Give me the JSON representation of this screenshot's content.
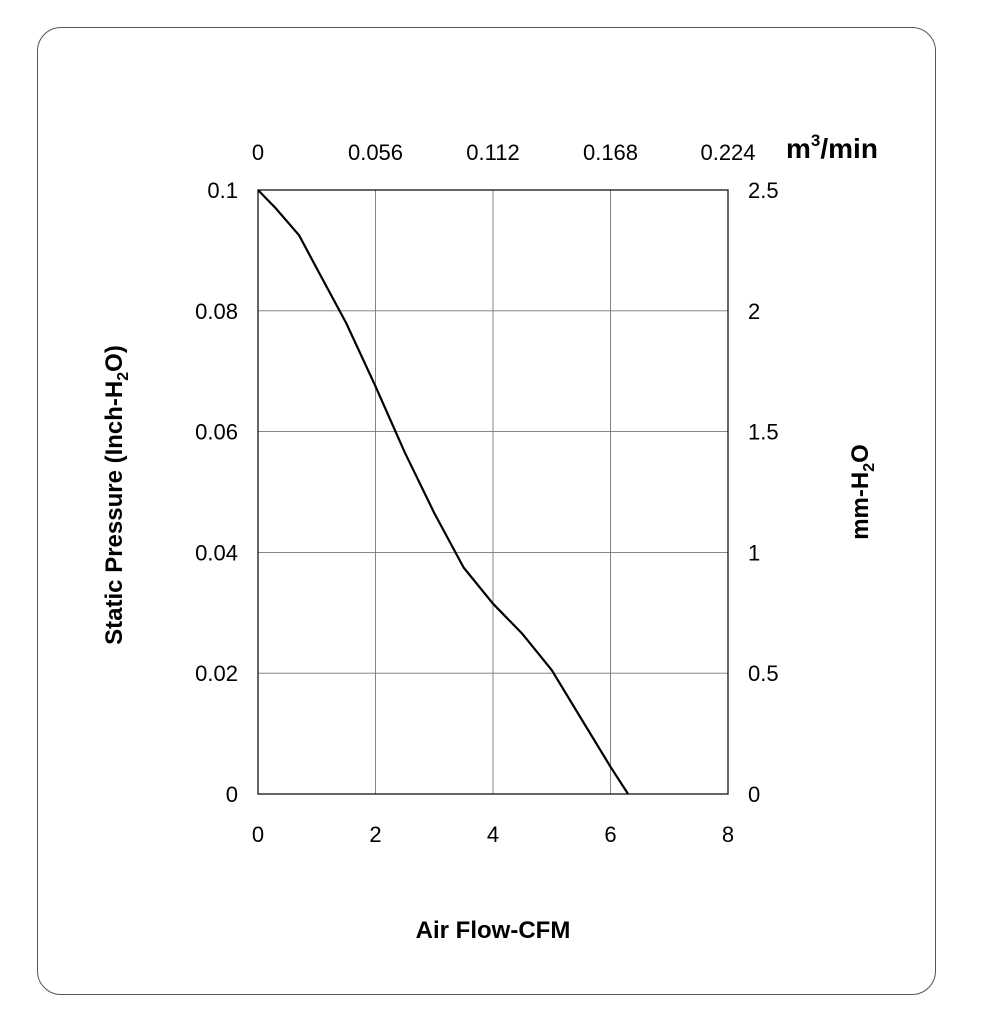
{
  "chart_data": {
    "type": "line",
    "xlabel": "Air Flow-CFM",
    "ylabel": {
      "text": "Static Pressure (Inch-H",
      "sub": "2",
      "tail": "O)"
    },
    "y2label": {
      "text": "mm-H",
      "sub": "2",
      "tail": "O"
    },
    "x2label": {
      "base": "m",
      "sup": "3",
      "tail": "/min"
    },
    "xlim": [
      0,
      8
    ],
    "ylim": [
      0,
      0.1
    ],
    "y2lim": [
      0,
      2.5
    ],
    "x2lim": [
      0,
      0.224
    ],
    "x_ticks": [
      "0",
      "2",
      "4",
      "6",
      "8"
    ],
    "y_ticks": [
      "0",
      "0.02",
      "0.04",
      "0.06",
      "0.08",
      "0.1"
    ],
    "y2_ticks": [
      "0",
      "0.5",
      "1",
      "1.5",
      "2",
      "2.5"
    ],
    "x2_ticks": [
      "0",
      "0.056",
      "0.112",
      "0.168",
      "0.224"
    ],
    "grid": true,
    "series": [
      {
        "x": [
          0,
          0.3,
          0.7,
          1.0,
          1.5,
          2.0,
          2.5,
          3.0,
          3.5,
          4.0,
          4.5,
          5.0,
          5.5,
          6.0,
          6.3
        ],
        "y": [
          0.1,
          0.097,
          0.0925,
          0.087,
          0.078,
          0.0675,
          0.0565,
          0.0465,
          0.0375,
          0.0315,
          0.0265,
          0.0205,
          0.0125,
          0.0045,
          0.0
        ]
      }
    ]
  }
}
